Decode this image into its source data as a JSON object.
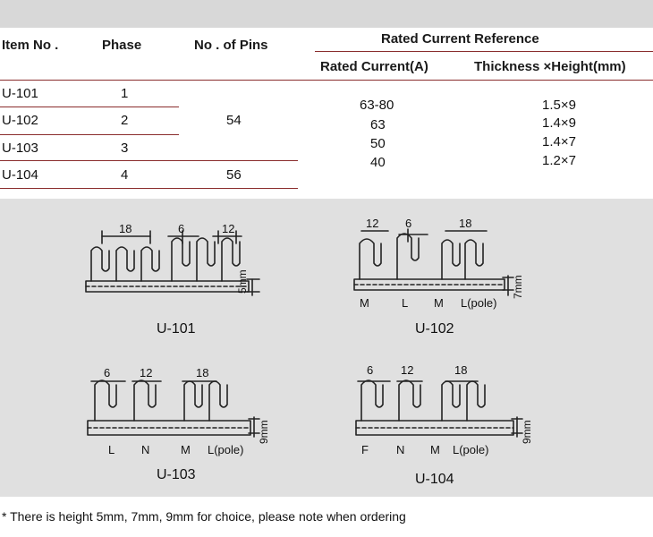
{
  "table": {
    "headers": {
      "item_no": "Item No .",
      "phase": "Phase",
      "pins": "No . of Pins",
      "rated_ref": "Rated Current Reference",
      "rated_current": "Rated Current(A)",
      "thickness_height": "Thickness ×Height(mm)"
    },
    "rows": [
      {
        "item": "U-101",
        "phase": "1"
      },
      {
        "item": "U-102",
        "phase": "2"
      },
      {
        "item": "U-103",
        "phase": "3"
      },
      {
        "item": "U-104",
        "phase": "4"
      }
    ],
    "pins_group_a": "54",
    "pins_group_b": "56",
    "currents": [
      "63-80",
      "63",
      "50",
      "40"
    ],
    "sizes": [
      "1.5×9",
      "1.4×9",
      "1.4×7",
      "1.2×7"
    ]
  },
  "diagrams": [
    {
      "name": "U-101",
      "dims": [
        "18",
        "6",
        "12"
      ],
      "height": "5mm",
      "labels": []
    },
    {
      "name": "U-102",
      "dims": [
        "12",
        "6",
        "18"
      ],
      "height": "7mm",
      "labels": [
        "M",
        "L",
        "M",
        "L(pole)"
      ]
    },
    {
      "name": "U-103",
      "dims": [
        "6",
        "12",
        "18"
      ],
      "height": "9mm",
      "labels": [
        "L",
        "N",
        "M",
        "L(pole)"
      ]
    },
    {
      "name": "U-104",
      "dims": [
        "6",
        "12",
        "18"
      ],
      "height": "9mm",
      "labels": [
        "F",
        "N",
        "M",
        "L(pole)"
      ]
    }
  ],
  "footnote": "* There is height 5mm, 7mm, 9mm for choice, please note when ordering"
}
